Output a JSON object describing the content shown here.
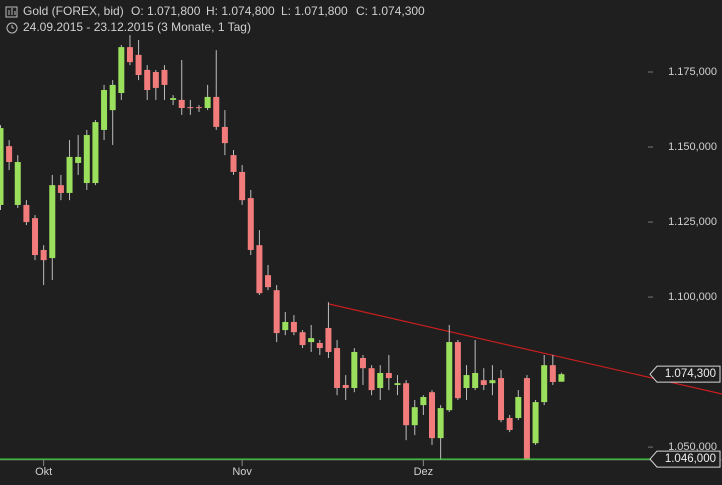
{
  "chart_data": {
    "type": "candlestick",
    "title": "Gold (FOREX, bid)",
    "ohlc_labels": [
      "O: 1.071,800",
      "H: 1.074,800",
      "L: 1.071,800",
      "C: 1.074,300"
    ],
    "subtitle": "24.09.2015 - 23.12.2015 (3 Monate, 1 Tag)",
    "categories": [
      null,
      null,
      null,
      null,
      null,
      "Okt",
      null,
      null,
      null,
      null,
      null,
      null,
      null,
      null,
      null,
      null,
      null,
      null,
      null,
      null,
      null,
      null,
      null,
      null,
      null,
      null,
      null,
      null,
      "Nov",
      null,
      null,
      null,
      null,
      null,
      null,
      null,
      null,
      null,
      null,
      null,
      null,
      null,
      null,
      null,
      null,
      null,
      null,
      null,
      null,
      "Dez",
      null,
      null,
      null,
      null,
      null,
      null,
      null,
      null,
      null,
      null,
      null,
      null,
      null,
      null,
      null,
      null
    ],
    "open": [
      1130.7,
      1150.3,
      1130.7,
      1130.7,
      1126.3,
      1115.7,
      1113,
      1137.3,
      1134.7,
      1144.7,
      1138,
      1138,
      1155.7,
      1162.3,
      1168,
      1183.3,
      1180.7,
      1175.7,
      1175,
      1175.7,
      1165.7,
      1165.7,
      1163.3,
      1163.3,
      1163,
      1166.7,
      1156.7,
      1147.3,
      1141.7,
      1133,
      1117.3,
      1107.3,
      1102.3,
      1089,
      1091.7,
      1088.3,
      1085,
      1084.7,
      1089.7,
      1083,
      1070.7,
      1069.7,
      1079.7,
      1076.3,
      1069.7,
      1074.7,
      1070.7,
      1071.3,
      1057.3,
      1064,
      1068.3,
      1053,
      1062.3,
      1085,
      1069.7,
      1069.7,
      1072.3,
      1071.3,
      1073,
      1059.7,
      1059.7,
      1073,
      1051.3,
      1065,
      1077.3,
      1071.8
    ],
    "high": [
      1157.3,
      1152.3,
      1147.3,
      1132.3,
      1127.3,
      1117.3,
      1140.7,
      1140.7,
      1152.3,
      1154,
      1155.7,
      1159,
      1170.7,
      1172.3,
      1184,
      1187.3,
      1185.7,
      1177.3,
      1175.7,
      1177.3,
      1167.3,
      1179,
      1165.7,
      1164,
      1170.7,
      1182.3,
      1162.3,
      1149,
      1144,
      1135.7,
      1122.3,
      1110.7,
      1104,
      1095,
      1094,
      1089,
      1090.7,
      1085.7,
      1098.3,
      1085.7,
      1074,
      1083,
      1080.7,
      1077.3,
      1077.3,
      1080.7,
      1074,
      1072.3,
      1065.7,
      1067.3,
      1069,
      1064,
      1090.7,
      1085.7,
      1077.3,
      1085.7,
      1076.3,
      1077.3,
      1075.7,
      1060.7,
      1069,
      1074,
      1065.7,
      1080.7,
      1080.7,
      1074.8
    ],
    "low": [
      1129,
      1142.3,
      1129.7,
      1124,
      1112.3,
      1104,
      1105.7,
      1132.3,
      1132.3,
      1140.7,
      1135.7,
      1137.3,
      1152.3,
      1150.7,
      1165.7,
      1177.3,
      1172.3,
      1165.7,
      1165.7,
      1165.7,
      1164,
      1160.7,
      1160.7,
      1161.7,
      1162.3,
      1155.7,
      1147.3,
      1140.7,
      1130.7,
      1114,
      1100.7,
      1102.3,
      1085,
      1087.3,
      1087.3,
      1083,
      1081.7,
      1080.7,
      1079.7,
      1067.3,
      1065.7,
      1068.3,
      1070.7,
      1067.3,
      1065.7,
      1069,
      1067.3,
      1052.3,
      1054,
      1060.7,
      1050.7,
      1045.7,
      1061.7,
      1065.7,
      1065.7,
      1069,
      1069,
      1067.3,
      1058.3,
      1055,
      1059,
      1045.7,
      1050.7,
      1064,
      1070.7,
      1071.8
    ],
    "close": [
      1156.3,
      1145,
      1145,
      1125,
      1114,
      1112.3,
      1137.3,
      1134.7,
      1146.7,
      1146.7,
      1154,
      1158.3,
      1169,
      1170.7,
      1183.3,
      1178.3,
      1174,
      1169,
      1169.7,
      1170.7,
      1166.3,
      1163,
      1163,
      1163,
      1166.7,
      1156.7,
      1151.3,
      1141.7,
      1132.3,
      1115.7,
      1101.3,
      1103.3,
      1088,
      1091.7,
      1088.3,
      1084,
      1086.3,
      1083,
      1081.7,
      1069.7,
      1069.7,
      1081.7,
      1076.3,
      1069,
      1074.7,
      1073,
      1071.3,
      1057.3,
      1063.3,
      1066.7,
      1053,
      1063,
      1085,
      1066.3,
      1074,
      1074.7,
      1070.7,
      1072.3,
      1059,
      1055.7,
      1066.7,
      1045.7,
      1065,
      1077.3,
      1071.7,
      1074.3
    ],
    "up_color": "#9be05c",
    "down_color": "#f27b7b",
    "ylim": [
      1045.7,
      1199
    ],
    "yticks": [
      {
        "value": 1175,
        "label": "1.175,000"
      },
      {
        "value": 1150,
        "label": "1.150,000"
      },
      {
        "value": 1125,
        "label": "1.125,000"
      },
      {
        "value": 1100,
        "label": "1.100,000"
      },
      {
        "value": 1050,
        "label": "1.050,000"
      }
    ],
    "last_price": {
      "value": 1074.3,
      "label": "1.074,300"
    },
    "support_line": {
      "value": 1046,
      "label": "1.046,000",
      "color": "#3ecf3e"
    }
  }
}
